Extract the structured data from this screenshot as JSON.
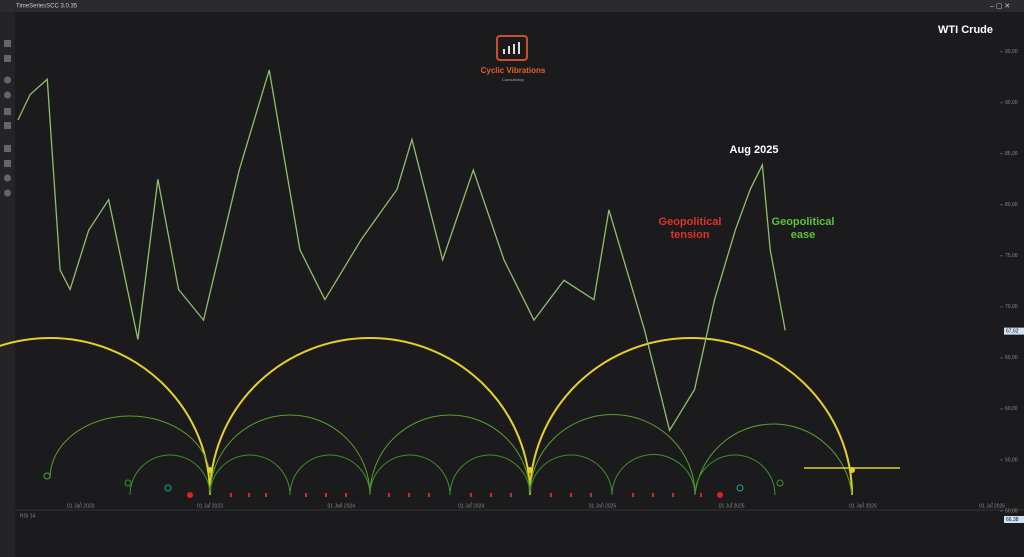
{
  "app_title": "TimeSeriesSCC 3.0.35",
  "logo": {
    "name": "Cyclic Vibrations",
    "tagline": "Consultancy"
  },
  "indicator": {
    "label": "RSI 14",
    "last_value": "66,38"
  },
  "chart_data": {
    "type": "line",
    "title": "WTI Crude",
    "x": [
      "2022-10-05",
      "2022-10-22",
      "2022-11-15",
      "2022-12-03",
      "2022-12-17",
      "2023-01-12",
      "2023-02-09",
      "2023-03-22",
      "2023-04-19",
      "2023-05-18",
      "2023-06-22",
      "2023-08-11",
      "2023-09-22",
      "2023-11-04",
      "2023-12-09",
      "2024-01-29",
      "2024-03-19",
      "2024-04-09",
      "2024-05-22",
      "2024-07-04",
      "2024-08-16",
      "2024-09-27",
      "2024-11-08",
      "2024-12-20",
      "2025-01-10",
      "2025-03-01",
      "2025-04-05",
      "2025-05-10",
      "2025-06-07",
      "2025-07-06",
      "2025-07-27",
      "2025-08-13",
      "2025-08-24",
      "2025-09-14"
    ],
    "series": [
      {
        "name": "WTI Crude",
        "color": "#8fbf6a",
        "values": [
          88.3,
          90.8,
          92.3,
          73.6,
          71.7,
          77.5,
          80.5,
          66.8,
          82.5,
          71.7,
          68.7,
          83.4,
          93.2,
          75.6,
          70.7,
          76.6,
          81.5,
          86.4,
          74.6,
          83.4,
          74.6,
          68.7,
          72.6,
          70.7,
          79.5,
          67.7,
          57.9,
          61.9,
          70.7,
          77.5,
          81.5,
          83.9,
          75.6,
          67.7
        ]
      }
    ],
    "last_value": {
      "value": 67.62,
      "label": "67,62"
    },
    "xlim": [
      "2022-10-05",
      "2026-07-12"
    ],
    "xticks": [
      {
        "value": "2023-01-01",
        "label": "01 Jan 2023"
      },
      {
        "value": "2023-07-01",
        "label": "01 Jul 2023"
      },
      {
        "value": "2024-01-01",
        "label": "01 Jan 2024"
      },
      {
        "value": "2024-07-01",
        "label": "01 Jul 2024"
      },
      {
        "value": "2025-01-01",
        "label": "01 Jan 2025"
      },
      {
        "value": "2025-07-01",
        "label": "01 Jul 2025"
      },
      {
        "value": "2026-01-01",
        "label": "01 Jan 2026"
      },
      {
        "value": "2026-07-01",
        "label": "01 Jul 2026"
      }
    ],
    "ylim": [
      49.9,
      98.1
    ],
    "yticks": [
      {
        "value": 50,
        "label": "50,00"
      },
      {
        "value": 55,
        "label": "55,00"
      },
      {
        "value": 60,
        "label": "60,00"
      },
      {
        "value": 65,
        "label": "65,00"
      },
      {
        "value": 70,
        "label": "70,00"
      },
      {
        "value": 75,
        "label": "75,00"
      },
      {
        "value": 80,
        "label": "80,00"
      },
      {
        "value": 85,
        "label": "85,00"
      },
      {
        "value": 90,
        "label": "90,00"
      },
      {
        "value": 95,
        "label": "95,00"
      }
    ],
    "annotations": [
      {
        "text": "Aug 2025"
      },
      {
        "text": "Geopolitical\ntension"
      },
      {
        "text": "Geopolitical\nease"
      }
    ]
  }
}
